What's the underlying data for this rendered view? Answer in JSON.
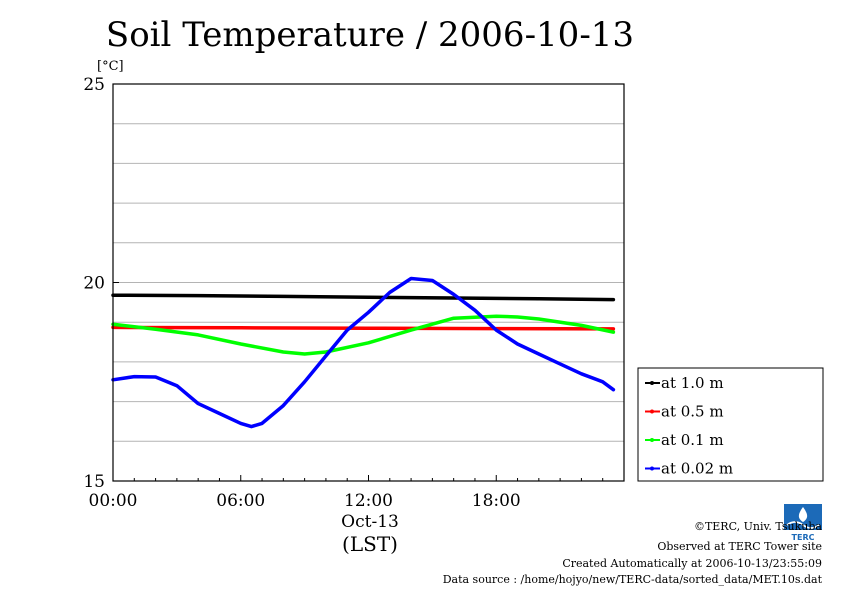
{
  "chart_data": {
    "type": "line",
    "title": "Soil Temperature / 2006-10-13",
    "ylabel": "[°C]",
    "xlabel": "(LST)",
    "date_label": "Oct-13",
    "x_range_hours": [
      0,
      23.5
    ],
    "ylim": [
      15,
      25
    ],
    "y_ticks": [
      {
        "value": 15,
        "label": "15"
      },
      {
        "value": 20,
        "label": "20"
      },
      {
        "value": 25,
        "label": "25"
      }
    ],
    "y_grid": [
      16,
      17,
      18,
      19,
      20,
      21,
      22,
      23,
      24
    ],
    "x_ticks": [
      {
        "hour": 0,
        "label": "00:00"
      },
      {
        "hour": 6,
        "label": "06:00"
      },
      {
        "hour": 12,
        "label": "12:00"
      },
      {
        "hour": 18,
        "label": "18:00"
      }
    ],
    "grid": true,
    "legend_position": "right",
    "series": [
      {
        "name": "at 1.0 m",
        "color": "#000000",
        "x": [
          0,
          4,
          8,
          12,
          16,
          20,
          23.5
        ],
        "y": [
          19.68,
          19.67,
          19.65,
          19.63,
          19.61,
          19.59,
          19.57
        ]
      },
      {
        "name": "at 0.5 m",
        "color": "#ff0000",
        "x": [
          0,
          6,
          12,
          18,
          23.5
        ],
        "y": [
          18.87,
          18.86,
          18.85,
          18.84,
          18.83
        ]
      },
      {
        "name": "at 0.1 m",
        "color": "#00ff00",
        "x": [
          0,
          2,
          4,
          6,
          8,
          9,
          10,
          12,
          14,
          16,
          18,
          19,
          20,
          22,
          23.5
        ],
        "y": [
          18.95,
          18.82,
          18.68,
          18.45,
          18.25,
          18.2,
          18.25,
          18.48,
          18.8,
          19.1,
          19.15,
          19.13,
          19.08,
          18.92,
          18.75
        ]
      },
      {
        "name": "at 0.02 m",
        "color": "#0000ff",
        "x": [
          0,
          1,
          2,
          3,
          4,
          5,
          6,
          6.5,
          7,
          8,
          9,
          10,
          11,
          12,
          13,
          14,
          15,
          16,
          17,
          18,
          19,
          20,
          21,
          22,
          23,
          23.5
        ],
        "y": [
          17.55,
          17.63,
          17.62,
          17.4,
          16.95,
          16.7,
          16.45,
          16.37,
          16.45,
          16.9,
          17.5,
          18.15,
          18.8,
          19.25,
          19.75,
          20.1,
          20.05,
          19.7,
          19.3,
          18.8,
          18.45,
          18.2,
          17.95,
          17.7,
          17.5,
          17.3
        ]
      }
    ]
  },
  "logo": {
    "text": "TERC"
  },
  "footer": {
    "copyright": "©TERC, Univ. Tsukuba",
    "site": "Observed at TERC Tower site",
    "created": "Created Automatically at 2006-10-13/23:55:09",
    "source": "Data source : /home/hojyo/new/TERC-data/sorted_data/MET.10s.dat"
  }
}
